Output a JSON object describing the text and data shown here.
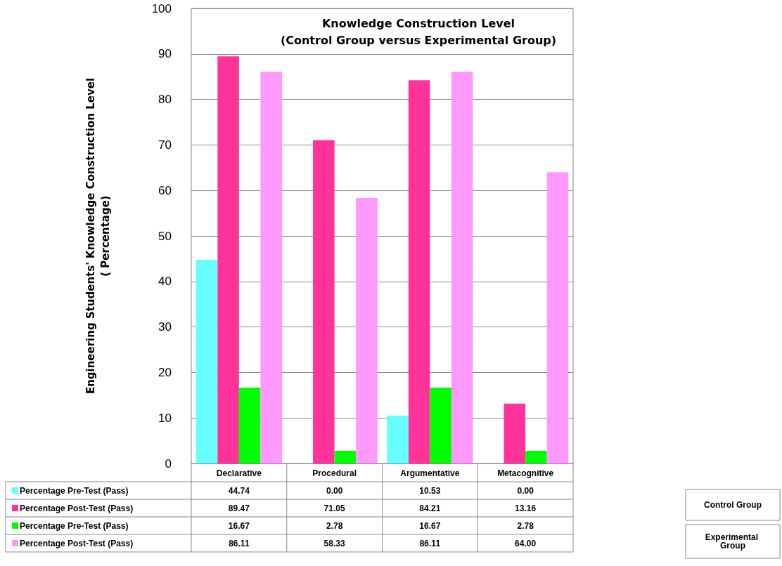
{
  "chart_data": {
    "type": "bar",
    "title": "Knowledge Construction Level\n(Control Group versus Experimental Group)",
    "ylabel": "Engineering Students' Knowledge Construction Level\n( Percentage)",
    "categories": [
      "Declarative",
      "Procedural",
      "Argumentative",
      "Metacognitive"
    ],
    "series": [
      {
        "name": "Percentage Pre-Test (Pass)",
        "color": "#66ffff",
        "values": [
          44.74,
          0.0,
          10.53,
          0.0
        ],
        "value_labels": [
          "44.74",
          "0.00",
          "10.53",
          "0.00"
        ]
      },
      {
        "name": "Percentage Post-Test (Pass)",
        "color": "#ff3399",
        "values": [
          89.47,
          71.05,
          84.21,
          13.16
        ],
        "value_labels": [
          "89.47",
          "71.05",
          "84.21",
          "13.16"
        ]
      },
      {
        "name": "Percentage Pre-Test (Pass)",
        "color": "#00ff00",
        "values": [
          16.67,
          2.78,
          16.67,
          2.78
        ],
        "value_labels": [
          "16.67",
          "2.78",
          "16.67",
          "2.78"
        ]
      },
      {
        "name": "Percentage Post-Test (Pass)",
        "color": "#ff99ff",
        "values": [
          86.11,
          58.33,
          86.11,
          64.0
        ],
        "value_labels": [
          "86.11",
          "58.33",
          "86.11",
          "64.00"
        ]
      }
    ],
    "ylim": [
      0,
      100
    ],
    "yticks": [
      0,
      10,
      20,
      30,
      40,
      50,
      60,
      70,
      80,
      90,
      100
    ],
    "grid": "y",
    "legend": "bottom left",
    "annotations": [
      "Control Group",
      "Experimental Group"
    ]
  }
}
